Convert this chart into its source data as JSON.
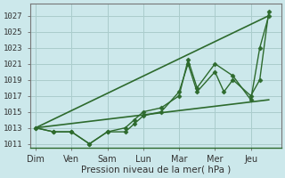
{
  "xlabel": "Pression niveau de la mer( hPa )",
  "background_color": "#cce8eb",
  "grid_color": "#aacccc",
  "line_color": "#2d6a2d",
  "days": [
    "Dim",
    "Ven",
    "Sam",
    "Lun",
    "Mar",
    "Mer",
    "Jeu"
  ],
  "day_positions": [
    0,
    1,
    2,
    3,
    4,
    5,
    6
  ],
  "ylim": [
    1010.5,
    1028.5
  ],
  "yticks": [
    1011,
    1013,
    1015,
    1017,
    1019,
    1021,
    1023,
    1025,
    1027
  ],
  "xlim": [
    -0.15,
    6.85
  ],
  "series": [
    {
      "x": [
        0.0,
        0.5,
        1.0,
        1.5,
        2.0,
        2.5,
        2.75,
        3.0,
        3.5,
        4.0,
        4.25,
        4.5,
        5.0,
        5.25,
        5.5,
        6.0,
        6.25,
        6.5
      ],
      "y": [
        1013.0,
        1012.5,
        1012.5,
        1011.0,
        1012.5,
        1012.5,
        1013.5,
        1014.5,
        1015.0,
        1017.5,
        1021.0,
        1017.5,
        1020.0,
        1017.5,
        1019.0,
        1017.0,
        1019.0,
        1027.5
      ],
      "marker": "D",
      "markersize": 2.5,
      "linewidth": 1.0,
      "linestyle": "-"
    },
    {
      "x": [
        0.0,
        0.5,
        1.0,
        1.5,
        2.0,
        2.5,
        2.75,
        3.0,
        3.5,
        4.0,
        4.25,
        4.5,
        5.0,
        5.5,
        6.0,
        6.25,
        6.5
      ],
      "y": [
        1013.0,
        1012.5,
        1012.5,
        1011.0,
        1012.5,
        1013.0,
        1014.0,
        1015.0,
        1015.5,
        1017.0,
        1021.5,
        1018.0,
        1021.0,
        1019.5,
        1016.5,
        1023.0,
        1027.0
      ],
      "marker": "D",
      "markersize": 2.5,
      "linewidth": 1.0,
      "linestyle": "-"
    },
    {
      "x": [
        0.0,
        6.5
      ],
      "y": [
        1013.0,
        1016.5
      ],
      "marker": null,
      "markersize": 0,
      "linewidth": 1.2,
      "linestyle": "-"
    },
    {
      "x": [
        0.0,
        6.5
      ],
      "y": [
        1013.0,
        1027.0
      ],
      "marker": null,
      "markersize": 0,
      "linewidth": 1.2,
      "linestyle": "-"
    }
  ]
}
